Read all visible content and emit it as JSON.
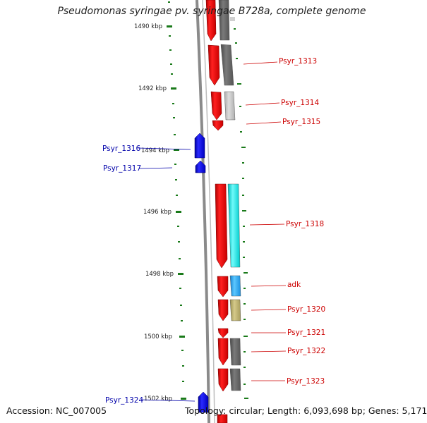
{
  "title": "Pseudomonas syringae pv. syringae B728a, complete genome",
  "accession": "Accession: NC_007005",
  "topology": "Topology: circular; Length: 6,093,698 bp; Genes: 5,171",
  "ticks": [
    "1490 kbp",
    "1492 kbp",
    "1494 kbp",
    "1496 kbp",
    "1498 kbp",
    "1500 kbp",
    "1502 kbp"
  ],
  "genes_right": [
    {
      "label": "Psyr_1313",
      "color": "#cc0000"
    },
    {
      "label": "Psyr_1314",
      "color": "#cc0000"
    },
    {
      "label": "Psyr_1315",
      "color": "#cc0000"
    },
    {
      "label": "Psyr_1318",
      "color": "#cc0000"
    },
    {
      "label": "adk",
      "color": "#cc0000"
    },
    {
      "label": "Psyr_1320",
      "color": "#cc0000"
    },
    {
      "label": "Psyr_1321",
      "color": "#cc0000"
    },
    {
      "label": "Psyr_1322",
      "color": "#cc0000"
    },
    {
      "label": "Psyr_1323",
      "color": "#cc0000"
    }
  ],
  "genes_left": [
    {
      "label": "Psyr_1316",
      "color": "#0000aa"
    },
    {
      "label": "Psyr_1317",
      "color": "#0000aa"
    },
    {
      "label": "Psyr_1324",
      "color": "#0000aa"
    }
  ],
  "colors": {
    "forward_gene": "#ff0000",
    "reverse_gene": "#0000ff",
    "backbone": "#8a8a8a",
    "tick": "#1a7a1a",
    "cog_dark_gray": "#666666",
    "cog_light_gray": "#c0c0c0",
    "cog_cyan": "#00e5e5",
    "cog_sky": "#29a8ee",
    "cog_khaki": "#b5a96a"
  }
}
